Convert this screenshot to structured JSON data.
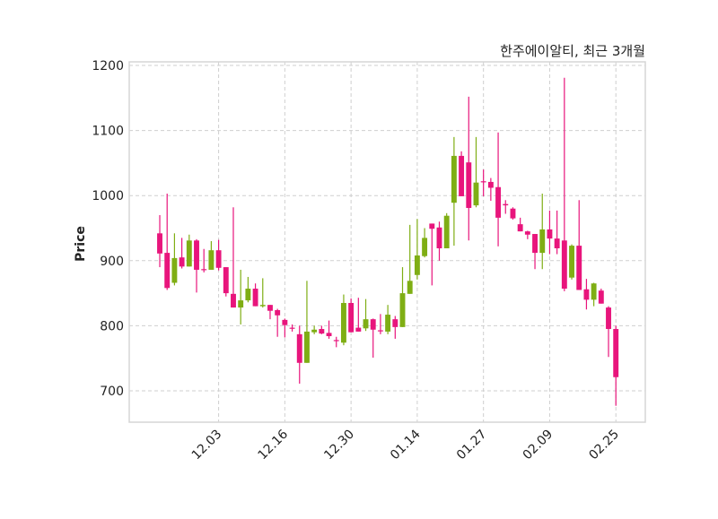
{
  "chart_data": {
    "type": "candlestick",
    "title": "한주에이알티, 최근 3개월",
    "xlabel": "",
    "ylabel": "Price",
    "ylim": [
      651.8,
      1205.5
    ],
    "xlim": [
      -4.15,
      66
    ],
    "grid": true,
    "yticks": [
      700,
      800,
      900,
      1000,
      1100,
      1200
    ],
    "xticks": [
      {
        "index": 8,
        "label": "12.03"
      },
      {
        "index": 17,
        "label": "12.16"
      },
      {
        "index": 26,
        "label": "12.30"
      },
      {
        "index": 35,
        "label": "01.14"
      },
      {
        "index": 44,
        "label": "01.27"
      },
      {
        "index": 53,
        "label": "02.09"
      },
      {
        "index": 62,
        "label": "02.25"
      }
    ],
    "colors": {
      "up": "#7fae14",
      "down": "#e8157c"
    },
    "ohlc_fields": [
      "open",
      "high",
      "low",
      "close"
    ],
    "candles": [
      [
        942,
        970,
        890,
        911
      ],
      [
        912,
        1003,
        855,
        858
      ],
      [
        866,
        942,
        862,
        904
      ],
      [
        905,
        935,
        888,
        891
      ],
      [
        891,
        940,
        891,
        931
      ],
      [
        931,
        933,
        851,
        886
      ],
      [
        887,
        918,
        882,
        886
      ],
      [
        886,
        930,
        886,
        916
      ],
      [
        916,
        932,
        885,
        889
      ],
      [
        890,
        890,
        845,
        850
      ],
      [
        849,
        982,
        828,
        828
      ],
      [
        828,
        886,
        802,
        839
      ],
      [
        839,
        875,
        836,
        857
      ],
      [
        857,
        865,
        830,
        830
      ],
      [
        830,
        873,
        828,
        832
      ],
      [
        832,
        832,
        810,
        823
      ],
      [
        824,
        826,
        783,
        816
      ],
      [
        809,
        811,
        782,
        801
      ],
      [
        797,
        802,
        791,
        796
      ],
      [
        787,
        800,
        711,
        743
      ],
      [
        743,
        869,
        743,
        791
      ],
      [
        790,
        800,
        787,
        794
      ],
      [
        795,
        800,
        787,
        788
      ],
      [
        789,
        808,
        780,
        784
      ],
      [
        778,
        783,
        767,
        777
      ],
      [
        774,
        848,
        770,
        835
      ],
      [
        835,
        842,
        790,
        790
      ],
      [
        797,
        843,
        791,
        791
      ],
      [
        796,
        841,
        792,
        810
      ],
      [
        810,
        811,
        751,
        794
      ],
      [
        793,
        818,
        787,
        792
      ],
      [
        791,
        832,
        787,
        817
      ],
      [
        810,
        815,
        780,
        798
      ],
      [
        798,
        890,
        798,
        850
      ],
      [
        849,
        955,
        849,
        869
      ],
      [
        878,
        964,
        871,
        908
      ],
      [
        907,
        950,
        905,
        935
      ],
      [
        957,
        957,
        862,
        949
      ],
      [
        951,
        960,
        900,
        919
      ],
      [
        919,
        973,
        919,
        969
      ],
      [
        989,
        1090,
        923,
        1061
      ],
      [
        1061,
        1068,
        999,
        999
      ],
      [
        1051,
        1152,
        931,
        981
      ],
      [
        985,
        1090,
        982,
        1020
      ],
      [
        1022,
        1040,
        999,
        1021
      ],
      [
        1021,
        1027,
        992,
        1012
      ],
      [
        1013,
        1097,
        922,
        966
      ],
      [
        987,
        993,
        972,
        985
      ],
      [
        980,
        982,
        963,
        965
      ],
      [
        956,
        966,
        945,
        945
      ],
      [
        945,
        946,
        933,
        940
      ],
      [
        941,
        941,
        887,
        912
      ],
      [
        912,
        1003,
        887,
        948
      ],
      [
        948,
        977,
        910,
        934
      ],
      [
        934,
        977,
        910,
        919
      ],
      [
        931,
        1181,
        853,
        857
      ],
      [
        874,
        925,
        871,
        923
      ],
      [
        923,
        993,
        855,
        855
      ],
      [
        856,
        872,
        825,
        840
      ],
      [
        840,
        866,
        830,
        865
      ],
      [
        854,
        857,
        834,
        834
      ],
      [
        828,
        830,
        752,
        795
      ],
      [
        795,
        800,
        677,
        721
      ]
    ]
  }
}
